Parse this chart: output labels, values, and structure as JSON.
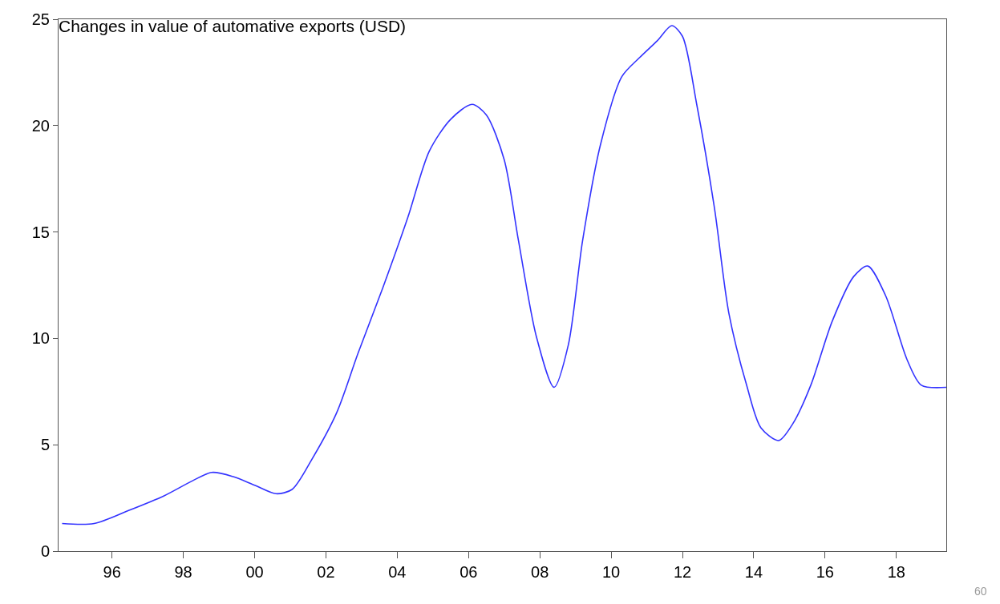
{
  "chart_data": {
    "type": "line",
    "title": "Changes in value of automative exports (USD)",
    "x": [
      1994.6,
      1995.5,
      1996.45,
      1997.46,
      1998.25,
      1998.8,
      1999.4,
      2000.0,
      2000.6,
      2001.05,
      2001.6,
      2002.3,
      2002.9,
      2003.6,
      2004.3,
      2004.9,
      2005.5,
      2006.1,
      2006.5,
      2007.0,
      2007.4,
      2007.9,
      2008.4,
      2008.8,
      2009.2,
      2009.7,
      2010.3,
      2010.8,
      2011.3,
      2011.7,
      2012.0,
      2012.4,
      2012.9,
      2013.3,
      2013.8,
      2014.2,
      2014.7,
      2015.1,
      2015.6,
      2016.2,
      2016.8,
      2017.2,
      2017.7,
      2018.3,
      2018.7,
      2019.4
    ],
    "series": [
      {
        "color": "#3333ff",
        "values": [
          1.3,
          1.3,
          1.9,
          2.6,
          3.3,
          3.7,
          3.5,
          3.1,
          2.7,
          2.9,
          4.3,
          6.5,
          9.3,
          12.4,
          15.7,
          18.8,
          20.3,
          21.0,
          20.5,
          18.4,
          14.6,
          10.1,
          7.7,
          9.7,
          14.6,
          19.1,
          22.3,
          23.2,
          24.0,
          24.7,
          24.2,
          21.0,
          16.1,
          11.2,
          7.8,
          5.8,
          5.2,
          6.0,
          7.8,
          10.8,
          12.9,
          13.4,
          12.0,
          9.0,
          7.8,
          7.7
        ]
      }
    ],
    "xlim": [
      1994.5,
      2019.4
    ],
    "xticks": [
      {
        "value": 1996,
        "label": "96"
      },
      {
        "value": 1998,
        "label": "98"
      },
      {
        "value": 2000,
        "label": "00"
      },
      {
        "value": 2002,
        "label": "02"
      },
      {
        "value": 2004,
        "label": "04"
      },
      {
        "value": 2006,
        "label": "06"
      },
      {
        "value": 2008,
        "label": "08"
      },
      {
        "value": 2010,
        "label": "10"
      },
      {
        "value": 2012,
        "label": "12"
      },
      {
        "value": 2014,
        "label": "14"
      },
      {
        "value": 2016,
        "label": "16"
      },
      {
        "value": 2018,
        "label": "18"
      }
    ],
    "ylim": [
      0,
      25
    ],
    "yticks": [
      0,
      5,
      10,
      15,
      20,
      25
    ],
    "grid": false,
    "marker": "none",
    "line_style": "solid",
    "annotations": [
      "60"
    ]
  }
}
